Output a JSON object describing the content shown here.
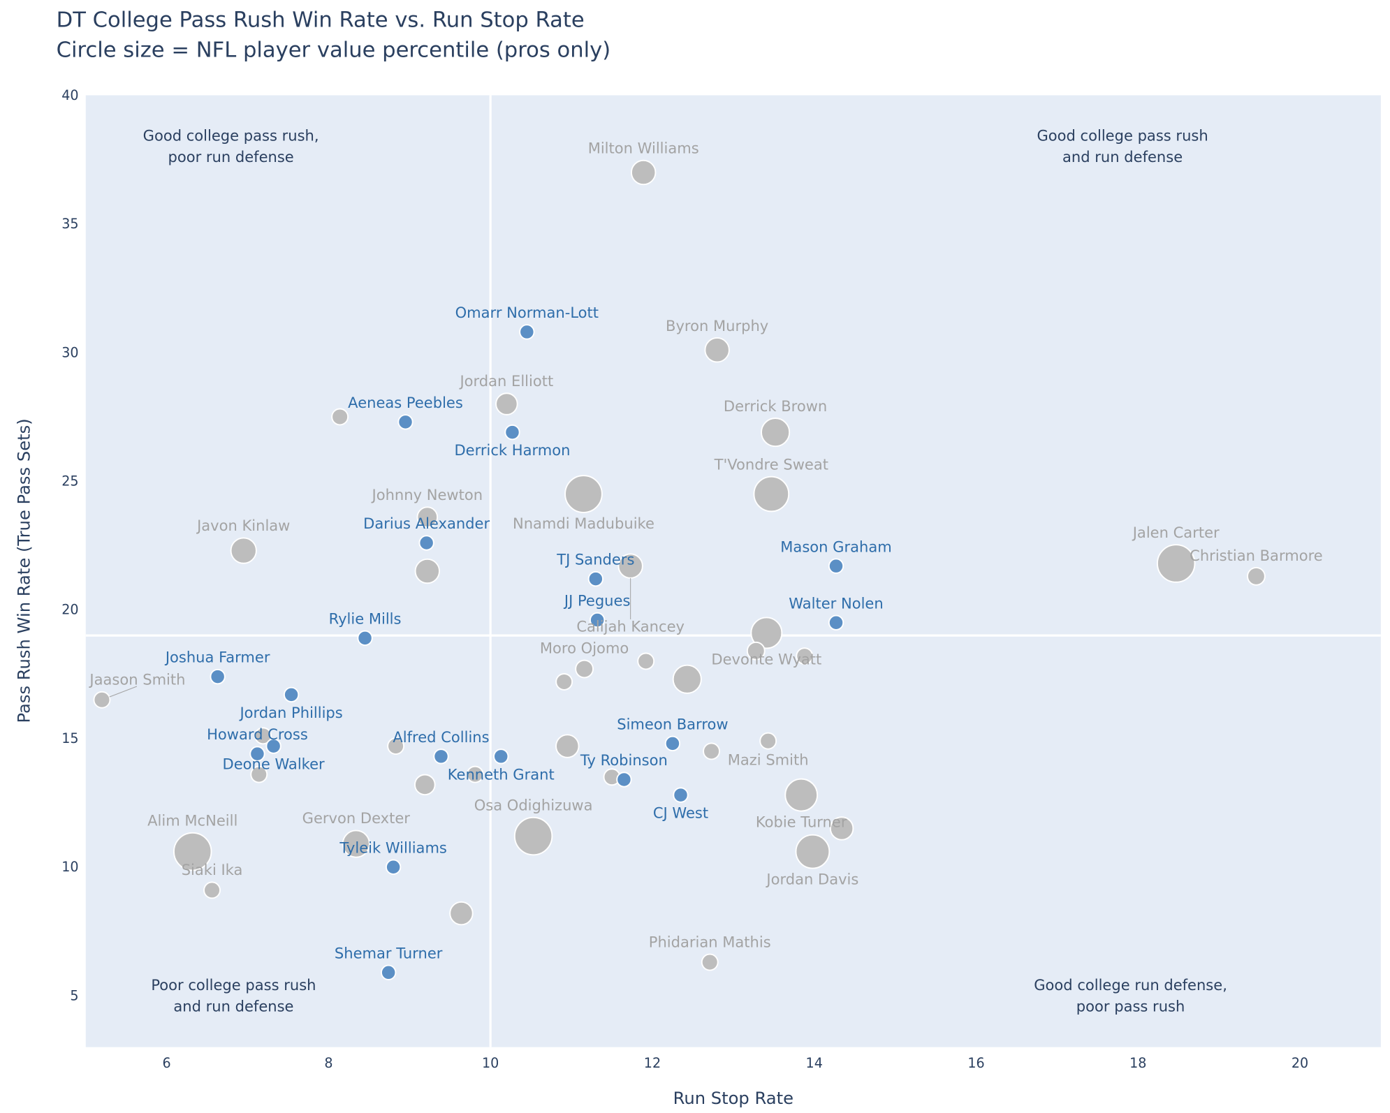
{
  "chart_data": {
    "type": "scatter",
    "title": "DT College Pass Rush Win Rate vs. Run Stop Rate",
    "subtitle": "Circle size = NFL player value percentile (pros only)",
    "xlabel": "Run Stop Rate",
    "ylabel": "Pass Rush Win Rate (True Pass Sets)",
    "xlim": [
      5,
      21
    ],
    "ylim": [
      3,
      40
    ],
    "xticks": [
      6,
      8,
      10,
      12,
      14,
      16,
      18,
      20
    ],
    "yticks": [
      5,
      10,
      15,
      20,
      25,
      30,
      35,
      40
    ],
    "grid": false,
    "reference_lines": {
      "x": 10,
      "y": 19
    },
    "colors": {
      "pros": "#bdbdbd",
      "pros_label": "#a3a3a3",
      "prospects": "#5b8fc5",
      "prospects_label": "#2e6daa",
      "background": "#e5ecf6"
    },
    "annotations": [
      {
        "lines": [
          "Good college pass rush,",
          "poor run defense"
        ],
        "position": "top-left"
      },
      {
        "lines": [
          "Good college pass rush",
          "and run defense"
        ],
        "position": "top-right"
      },
      {
        "lines": [
          "Poor college pass rush",
          "and run defense"
        ],
        "position": "bottom-left"
      },
      {
        "lines": [
          "Good college run defense,",
          "poor pass rush"
        ],
        "position": "bottom-right"
      }
    ],
    "pros": [
      {
        "name": "Milton Williams",
        "x": 11.89,
        "y": 37.0,
        "pct": 50
      },
      {
        "name": "Byron Murphy",
        "x": 12.8,
        "y": 30.1,
        "pct": 50
      },
      {
        "name": "Jordan Elliott",
        "x": 10.2,
        "y": 28.0,
        "pct": 40
      },
      {
        "name": "Derrick Brown",
        "x": 13.52,
        "y": 26.9,
        "pct": 65
      },
      {
        "name": "Nnamdi Madubuike",
        "x": 11.15,
        "y": 24.5,
        "pct": 98
      },
      {
        "name": "T'Vondre Sweat",
        "x": 13.47,
        "y": 24.5,
        "pct": 90
      },
      {
        "name": "Johnny Newton",
        "x": 9.22,
        "y": 23.6,
        "pct": 35
      },
      {
        "name": "Javon Kinlaw",
        "x": 6.95,
        "y": 22.3,
        "pct": 55
      },
      {
        "name": "Calijah Kancey",
        "x": 11.73,
        "y": 21.7,
        "pct": 50
      },
      {
        "name": "Jalen Carter",
        "x": 18.47,
        "y": 21.8,
        "pct": 100
      },
      {
        "name": "Christian Barmore",
        "x": 19.46,
        "y": 21.3,
        "pct": 25
      },
      {
        "name": "Devonte Wyatt",
        "x": 13.41,
        "y": 19.1,
        "pct": 75
      },
      {
        "name": "Moro Ojomo",
        "x": 11.16,
        "y": 17.7,
        "pct": 25
      },
      {
        "name": "Jaason Smith",
        "x": 5.2,
        "y": 16.5,
        "pct": 20
      },
      {
        "name": "Mazi Smith",
        "x": 13.43,
        "y": 14.9,
        "pct": 20
      },
      {
        "name": "Kobie Turner",
        "x": 13.84,
        "y": 12.8,
        "pct": 80
      },
      {
        "name": "Jordan Davis",
        "x": 13.98,
        "y": 10.6,
        "pct": 85
      },
      {
        "name": "Osa Odighizuwa",
        "x": 10.53,
        "y": 11.2,
        "pct": 100
      },
      {
        "name": "Alim McNeill",
        "x": 6.32,
        "y": 10.6,
        "pct": 100
      },
      {
        "name": "Gervon Dexter",
        "x": 8.34,
        "y": 10.9,
        "pct": 60
      },
      {
        "name": "Siaki Ika",
        "x": 6.56,
        "y": 9.1,
        "pct": 20
      },
      {
        "name": "Phidarian Mathis",
        "x": 12.71,
        "y": 6.3,
        "pct": 20
      },
      {
        "name": "",
        "x": 8.14,
        "y": 27.5,
        "pct": 20
      },
      {
        "name": "",
        "x": 9.22,
        "y": 21.5,
        "pct": 50
      },
      {
        "name": "",
        "x": 10.91,
        "y": 17.2,
        "pct": 20
      },
      {
        "name": "",
        "x": 11.92,
        "y": 18.0,
        "pct": 20
      },
      {
        "name": "",
        "x": 12.43,
        "y": 17.3,
        "pct": 65
      },
      {
        "name": "",
        "x": 13.28,
        "y": 18.4,
        "pct": 25
      },
      {
        "name": "",
        "x": 13.88,
        "y": 18.2,
        "pct": 20
      },
      {
        "name": "",
        "x": 7.19,
        "y": 15.1,
        "pct": 20
      },
      {
        "name": "",
        "x": 7.14,
        "y": 13.6,
        "pct": 20
      },
      {
        "name": "",
        "x": 8.83,
        "y": 14.7,
        "pct": 20
      },
      {
        "name": "",
        "x": 9.19,
        "y": 13.2,
        "pct": 35
      },
      {
        "name": "",
        "x": 9.81,
        "y": 13.6,
        "pct": 20
      },
      {
        "name": "",
        "x": 10.95,
        "y": 14.7,
        "pct": 45
      },
      {
        "name": "",
        "x": 11.5,
        "y": 13.5,
        "pct": 20
      },
      {
        "name": "",
        "x": 12.73,
        "y": 14.5,
        "pct": 20
      },
      {
        "name": "",
        "x": 9.64,
        "y": 8.2,
        "pct": 45
      },
      {
        "name": "",
        "x": 14.34,
        "y": 11.5,
        "pct": 45
      }
    ],
    "prospects": [
      {
        "name": "Omarr Norman-Lott",
        "x": 10.45,
        "y": 30.8
      },
      {
        "name": "Aeneas Peebles",
        "x": 8.95,
        "y": 27.3
      },
      {
        "name": "Derrick Harmon",
        "x": 10.27,
        "y": 26.9
      },
      {
        "name": "Darius Alexander",
        "x": 9.21,
        "y": 22.6
      },
      {
        "name": "TJ Sanders",
        "x": 11.3,
        "y": 21.2
      },
      {
        "name": "Mason Graham",
        "x": 14.27,
        "y": 21.7
      },
      {
        "name": "JJ Pegues",
        "x": 11.32,
        "y": 19.6
      },
      {
        "name": "Walter Nolen",
        "x": 14.27,
        "y": 19.5
      },
      {
        "name": "Rylie Mills",
        "x": 8.45,
        "y": 18.9
      },
      {
        "name": "Joshua Farmer",
        "x": 6.63,
        "y": 17.4
      },
      {
        "name": "Jordan Phillips",
        "x": 7.54,
        "y": 16.7
      },
      {
        "name": "Deone Walker",
        "x": 7.32,
        "y": 14.7
      },
      {
        "name": "Howard Cross",
        "x": 7.12,
        "y": 14.4
      },
      {
        "name": "Alfred Collins",
        "x": 9.39,
        "y": 14.3
      },
      {
        "name": "Kenneth Grant",
        "x": 10.13,
        "y": 14.3
      },
      {
        "name": "Simeon Barrow",
        "x": 12.25,
        "y": 14.8
      },
      {
        "name": "Ty Robinson",
        "x": 11.65,
        "y": 13.4
      },
      {
        "name": "CJ West",
        "x": 12.35,
        "y": 12.8
      },
      {
        "name": "Tyleik Williams",
        "x": 8.8,
        "y": 10.0
      },
      {
        "name": "Shemar Turner",
        "x": 8.74,
        "y": 5.9
      }
    ]
  }
}
